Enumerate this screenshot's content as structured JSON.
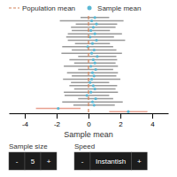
{
  "chart_data": {
    "type": "interval",
    "xlabel": "Sample mean",
    "xlim": [
      -5,
      5
    ],
    "xticks": [
      -4,
      -2,
      0,
      2,
      4
    ],
    "grid": false,
    "tick_labels": "x",
    "legend": "upper left",
    "series": [
      {
        "name": "Population mean",
        "type": "vline",
        "line_style": "dashed",
        "color": "#d4845a",
        "values": [
          0.0
        ]
      },
      {
        "name": "Sample mean",
        "type": "interval",
        "marker": "circle",
        "color": "#5bb8d4",
        "values": [
          0.4,
          0.2,
          0.5,
          0.3,
          0.15,
          0.4,
          0.1,
          0.5,
          0.25,
          -0.05,
          0.35,
          0.2,
          0.55,
          0.3,
          0.4,
          0.15,
          0.45,
          0.25,
          0.35,
          0.2,
          0.1,
          0.3,
          0.4,
          0.15,
          -0.1,
          0.45,
          0.25,
          0.35,
          -1.9,
          2.5
        ],
        "error": [
          0.9,
          2.0,
          1.3,
          1.4,
          1.2,
          1.7,
          1.5,
          1.8,
          1.1,
          1.6,
          1.4,
          1.9,
          1.2,
          1.5,
          1.3,
          1.7,
          1.1,
          1.6,
          1.4,
          1.8,
          1.2,
          1.5,
          1.3,
          1.7,
          1.4,
          1.1,
          1.9,
          1.3,
          1.4,
          1.2
        ],
        "colors": [
          "#9a9a9a",
          "#9a9a9a",
          "#9a9a9a",
          "#9a9a9a",
          "#9a9a9a",
          "#9a9a9a",
          "#9a9a9a",
          "#9a9a9a",
          "#9a9a9a",
          "#9a9a9a",
          "#9a9a9a",
          "#9a9a9a",
          "#9a9a9a",
          "#9a9a9a",
          "#9a9a9a",
          "#9a9a9a",
          "#9a9a9a",
          "#9a9a9a",
          "#9a9a9a",
          "#9a9a9a",
          "#9a9a9a",
          "#9a9a9a",
          "#9a9a9a",
          "#9a9a9a",
          "#9a9a9a",
          "#9a9a9a",
          "#9a9a9a",
          "#9a9a9a",
          "#e8a090",
          "#e8a090"
        ]
      }
    ],
    "annotations": [
      {
        "text": "Sample size",
        "buttons": [
          "-",
          "5",
          "+"
        ]
      },
      {
        "text": "Speed",
        "buttons": [
          "-",
          "Instantish",
          "+"
        ]
      }
    ]
  }
}
